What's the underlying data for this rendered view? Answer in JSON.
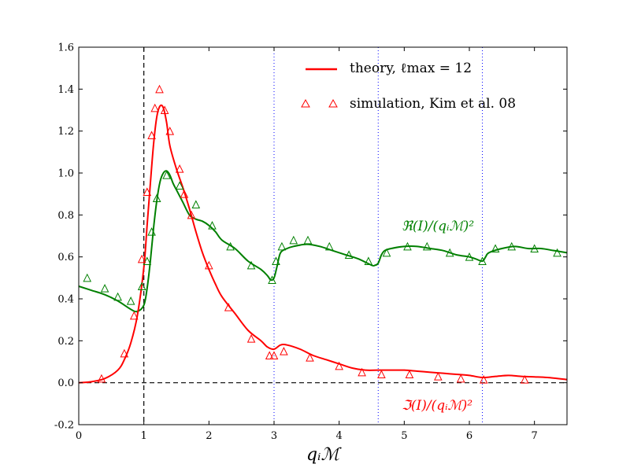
{
  "chart_data": {
    "type": "line",
    "title": "",
    "xlabel": "q_i M",
    "xlabel_display": "qᵢℳ",
    "ylabel": "",
    "xlim": [
      0,
      7.5
    ],
    "ylim": [
      -0.2,
      1.6
    ],
    "xticks": [
      0,
      1,
      2,
      3,
      4,
      5,
      6,
      7
    ],
    "xtick_labels": [
      "0",
      "1",
      "2",
      "3",
      "4",
      "5",
      "6",
      "7"
    ],
    "yticks": [
      -0.2,
      0.0,
      0.2,
      0.4,
      0.6,
      0.8,
      1.0,
      1.2,
      1.4,
      1.6
    ],
    "ytick_labels": [
      "-0.2",
      "0.0",
      "0.2",
      "0.4",
      "0.6",
      "0.8",
      "1.0",
      "1.2",
      "1.4",
      "1.6"
    ],
    "reference_lines": {
      "dashed_vertical_x": 1.0,
      "dashed_horizontal_y": 0.0,
      "dotted_vertical_x": [
        3.0,
        4.6,
        6.2
      ]
    },
    "legend": {
      "placement": "top-right",
      "entries": [
        {
          "label": "theory, ℓmax = 12",
          "style": "line"
        },
        {
          "label": "simulation, Kim et al. 08",
          "style": "triangle-marker"
        }
      ]
    },
    "annotations": [
      {
        "text": "ℜ(I)/(qᵢℳ)²",
        "color": "#008000",
        "near": "green curve, x≈5–6"
      },
      {
        "text": "ℑ(I)/(qᵢℳ)²",
        "color": "#ff0000",
        "near": "red curve, x≈5–6 below axis"
      }
    ],
    "colors": {
      "real": "#008000",
      "imag": "#ff0000",
      "reference": "#000000",
      "dotted": "#0000ff"
    },
    "series": [
      {
        "name": "theory real part",
        "color": "#008000",
        "kind": "line",
        "x": [
          0.0,
          0.2,
          0.4,
          0.6,
          0.8,
          0.9,
          1.0,
          1.05,
          1.1,
          1.15,
          1.2,
          1.25,
          1.3,
          1.35,
          1.4,
          1.45,
          1.5,
          1.6,
          1.7,
          1.8,
          1.9,
          2.0,
          2.1,
          2.2,
          2.4,
          2.6,
          2.8,
          2.9,
          2.95,
          3.0,
          3.05,
          3.1,
          3.2,
          3.3,
          3.5,
          3.7,
          3.9,
          4.1,
          4.3,
          4.5,
          4.55,
          4.6,
          4.65,
          4.7,
          4.8,
          5.0,
          5.2,
          5.4,
          5.6,
          5.8,
          6.0,
          6.1,
          6.2,
          6.25,
          6.3,
          6.5,
          6.7,
          6.9,
          7.1,
          7.3,
          7.5
        ],
        "y": [
          0.46,
          0.44,
          0.42,
          0.39,
          0.35,
          0.34,
          0.37,
          0.45,
          0.58,
          0.74,
          0.87,
          0.96,
          1.0,
          1.01,
          0.99,
          0.95,
          0.92,
          0.86,
          0.8,
          0.78,
          0.77,
          0.75,
          0.72,
          0.68,
          0.64,
          0.58,
          0.54,
          0.51,
          0.49,
          0.5,
          0.56,
          0.62,
          0.64,
          0.65,
          0.66,
          0.65,
          0.63,
          0.61,
          0.59,
          0.56,
          0.56,
          0.57,
          0.61,
          0.63,
          0.64,
          0.65,
          0.65,
          0.64,
          0.63,
          0.61,
          0.6,
          0.59,
          0.58,
          0.6,
          0.62,
          0.64,
          0.65,
          0.64,
          0.64,
          0.63,
          0.62
        ]
      },
      {
        "name": "theory imaginary part",
        "color": "#ff0000",
        "kind": "line",
        "x": [
          0.0,
          0.2,
          0.4,
          0.6,
          0.7,
          0.8,
          0.9,
          1.0,
          1.05,
          1.1,
          1.15,
          1.2,
          1.25,
          1.3,
          1.35,
          1.4,
          1.5,
          1.6,
          1.7,
          1.8,
          1.9,
          2.0,
          2.1,
          2.2,
          2.4,
          2.6,
          2.8,
          2.9,
          3.0,
          3.1,
          3.2,
          3.4,
          3.6,
          3.8,
          4.0,
          4.2,
          4.4,
          4.6,
          4.8,
          5.0,
          5.2,
          5.4,
          5.6,
          5.8,
          6.0,
          6.2,
          6.4,
          6.6,
          6.8,
          7.0,
          7.2,
          7.5
        ],
        "y": [
          0.0,
          0.005,
          0.02,
          0.06,
          0.11,
          0.19,
          0.32,
          0.55,
          0.75,
          0.95,
          1.14,
          1.27,
          1.32,
          1.31,
          1.24,
          1.13,
          1.02,
          0.93,
          0.83,
          0.72,
          0.62,
          0.54,
          0.47,
          0.41,
          0.33,
          0.25,
          0.2,
          0.17,
          0.16,
          0.18,
          0.18,
          0.16,
          0.13,
          0.11,
          0.09,
          0.07,
          0.06,
          0.06,
          0.06,
          0.06,
          0.055,
          0.05,
          0.045,
          0.04,
          0.035,
          0.025,
          0.03,
          0.035,
          0.03,
          0.028,
          0.025,
          0.015
        ]
      },
      {
        "name": "simulation real part",
        "color": "#008000",
        "kind": "triangle-marker",
        "x": [
          0.13,
          0.4,
          0.6,
          0.8,
          0.97,
          1.05,
          1.12,
          1.2,
          1.35,
          1.55,
          1.8,
          2.05,
          2.33,
          2.65,
          2.97,
          3.03,
          3.12,
          3.3,
          3.52,
          3.85,
          4.15,
          4.45,
          4.73,
          5.05,
          5.35,
          5.7,
          6.0,
          6.2,
          6.4,
          6.65,
          7.0,
          7.35
        ],
        "y": [
          0.5,
          0.45,
          0.41,
          0.39,
          0.46,
          0.58,
          0.72,
          0.88,
          0.99,
          0.94,
          0.85,
          0.75,
          0.65,
          0.56,
          0.49,
          0.58,
          0.65,
          0.68,
          0.68,
          0.65,
          0.61,
          0.58,
          0.62,
          0.65,
          0.65,
          0.62,
          0.6,
          0.58,
          0.64,
          0.65,
          0.64,
          0.62
        ]
      },
      {
        "name": "simulation imaginary part",
        "color": "#ff0000",
        "kind": "triangle-marker",
        "x": [
          0.35,
          0.7,
          0.85,
          0.97,
          1.05,
          1.12,
          1.17,
          1.24,
          1.32,
          1.4,
          1.55,
          1.62,
          1.73,
          2.0,
          2.3,
          2.65,
          2.93,
          3.0,
          3.15,
          3.55,
          4.0,
          4.35,
          4.65,
          5.08,
          5.52,
          5.87,
          6.22,
          6.85
        ],
        "y": [
          0.02,
          0.14,
          0.32,
          0.59,
          0.91,
          1.18,
          1.31,
          1.4,
          1.3,
          1.2,
          1.02,
          0.9,
          0.8,
          0.56,
          0.36,
          0.21,
          0.13,
          0.13,
          0.15,
          0.12,
          0.08,
          0.05,
          0.04,
          0.04,
          0.03,
          0.02,
          0.015,
          0.015
        ]
      }
    ]
  }
}
